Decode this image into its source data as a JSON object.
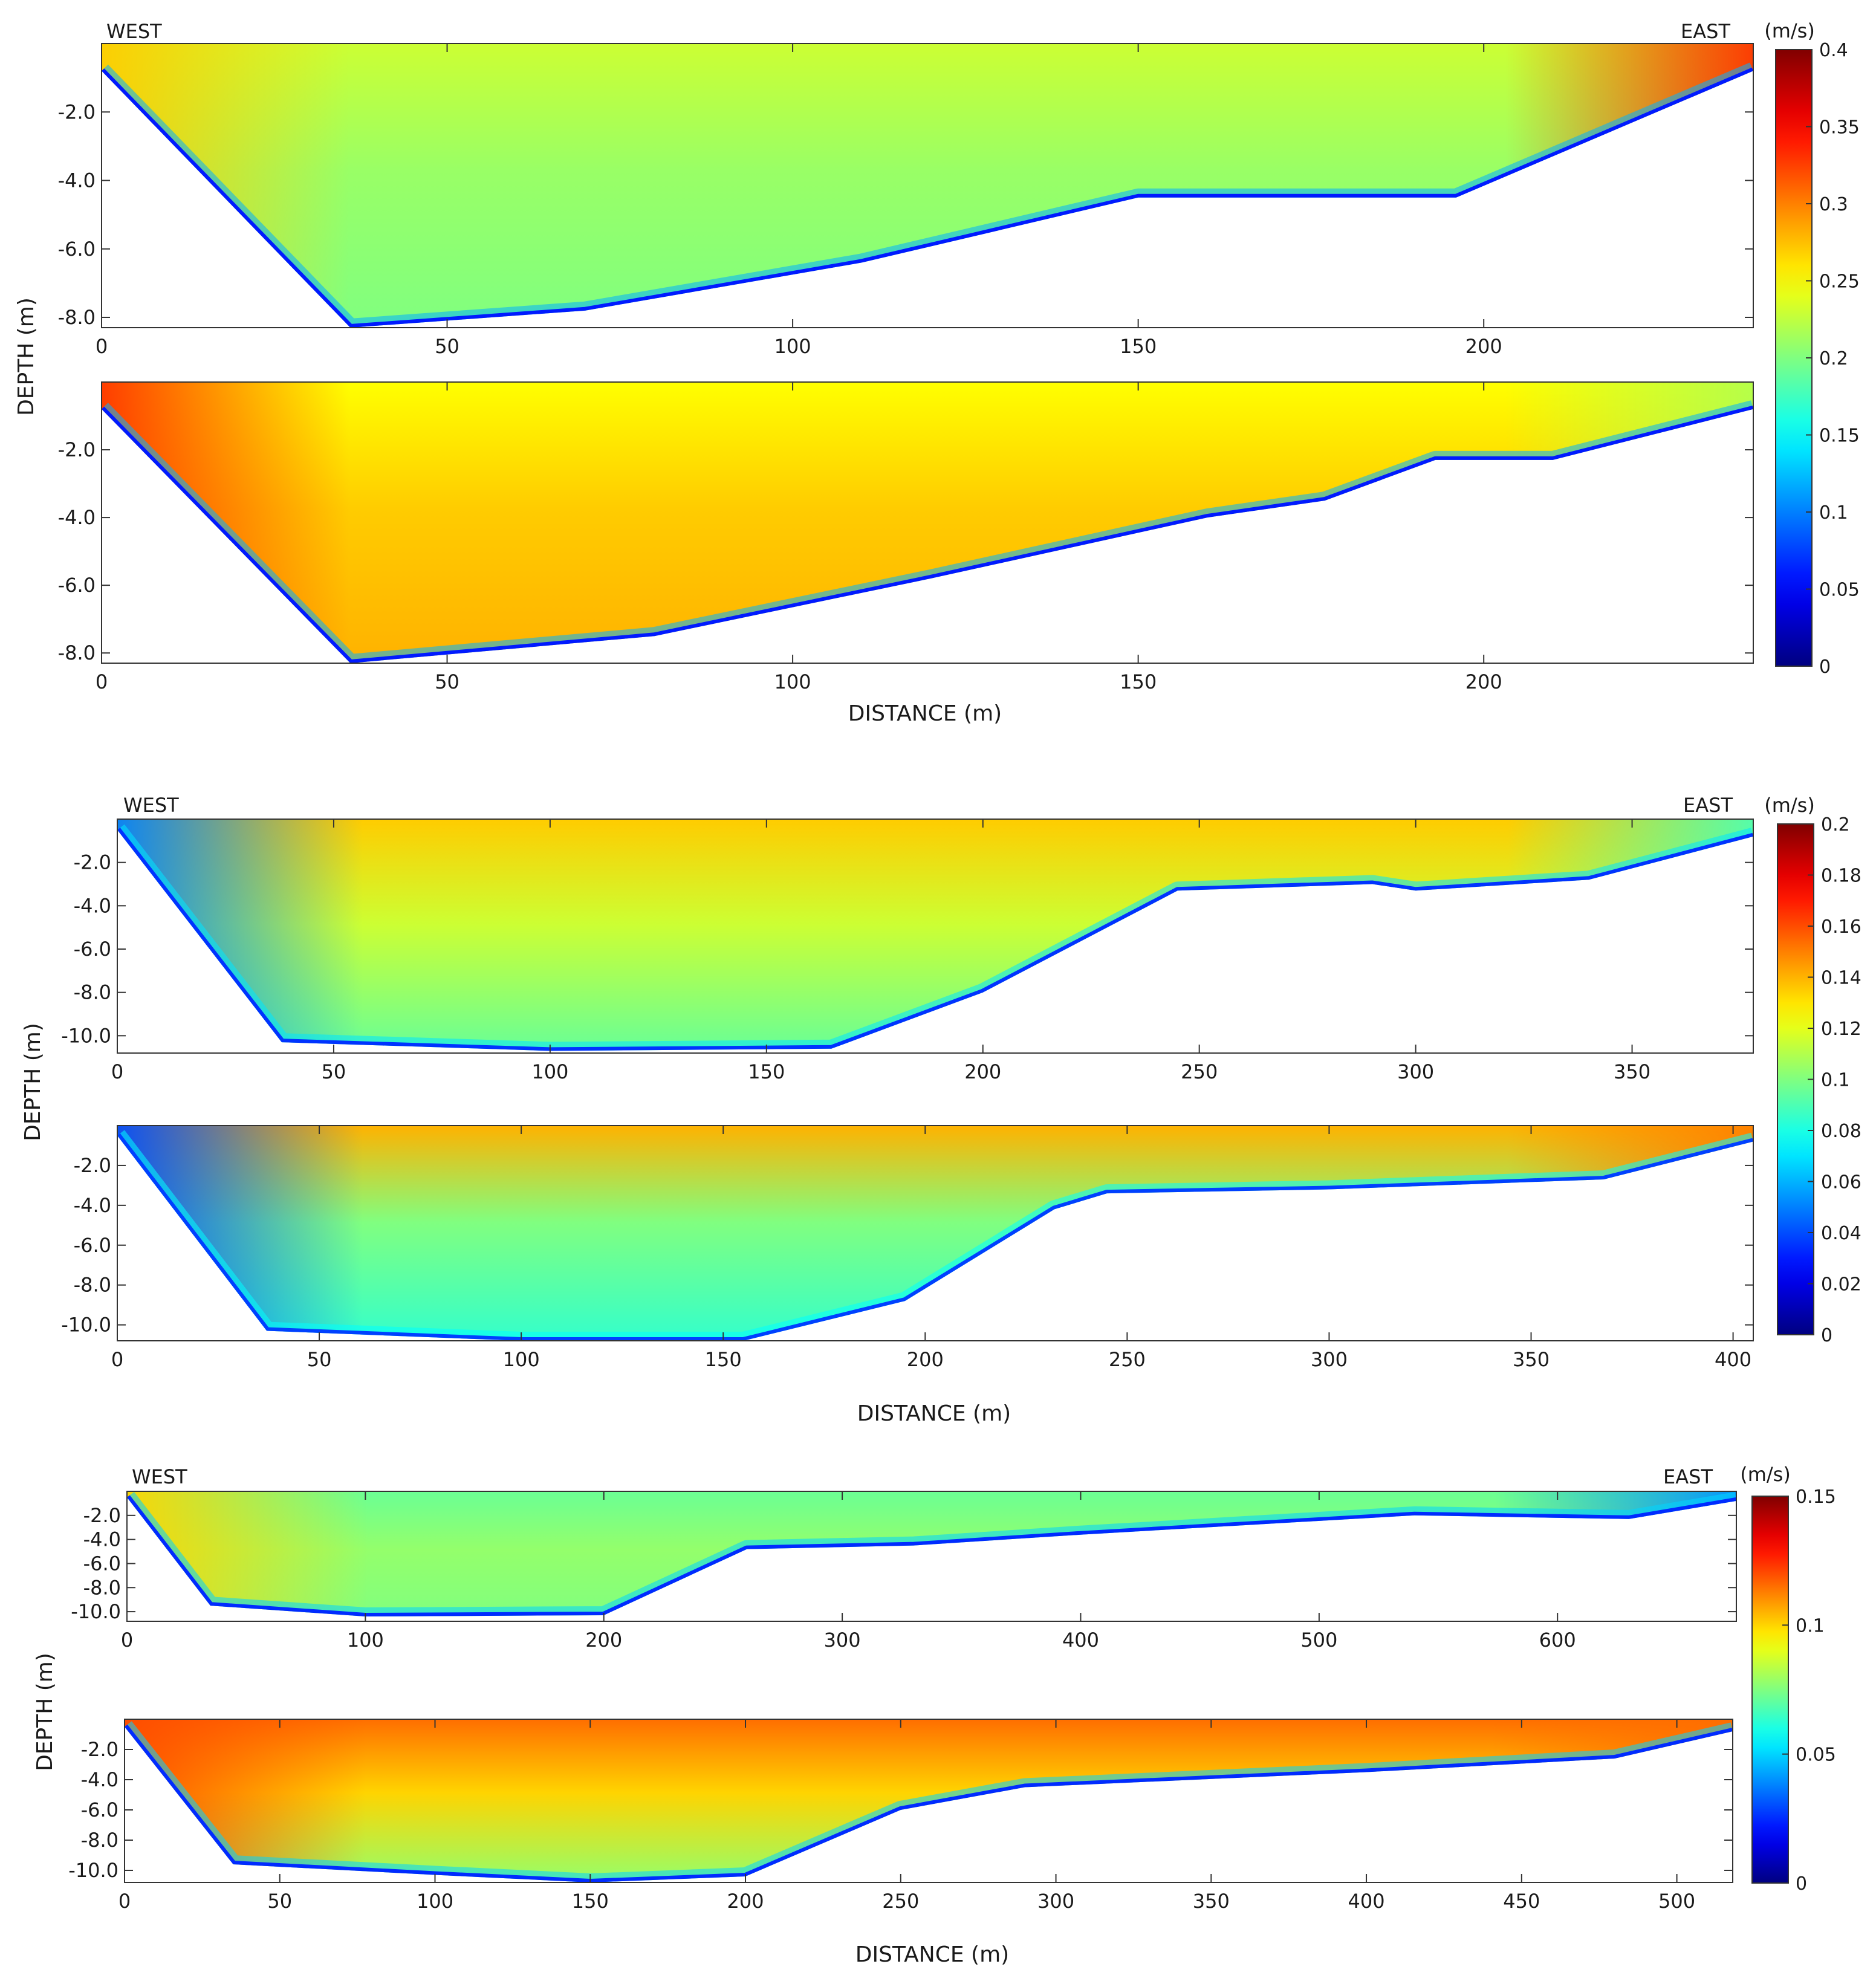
{
  "common": {
    "west_label": "WEST",
    "east_label": "EAST",
    "units_label": "(m/s)",
    "depth_axis_label": "DEPTH (m)",
    "distance_axis_label": "DISTANCE (m)"
  },
  "chart_data": [
    {
      "type": "heatmap",
      "group": 1,
      "panel": "top",
      "xlim": [
        0,
        239
      ],
      "ylim": [
        -8.3,
        0
      ],
      "x_ticks": [
        0,
        50,
        100,
        150,
        200
      ],
      "y_ticks": [
        -2.0,
        -4.0,
        -6.0,
        -8.0
      ],
      "x_tick_labels": [
        "0",
        "50",
        "100",
        "150",
        "200"
      ],
      "y_tick_labels": [
        "-2.0",
        "-4.0",
        "-6.0",
        "-8.0"
      ],
      "bed_profile": [
        [
          0,
          -0.8
        ],
        [
          36,
          -8.3
        ],
        [
          70,
          -7.8
        ],
        [
          110,
          -6.4
        ],
        [
          150,
          -4.5
        ],
        [
          196,
          -4.5
        ],
        [
          239,
          -0.8
        ]
      ],
      "colorscale": {
        "label": "(m/s)",
        "min": 0,
        "max": 0.4,
        "ticks": [
          0,
          0.05,
          0.1,
          0.15,
          0.2,
          0.25,
          0.3,
          0.35,
          0.4
        ],
        "tick_labels": [
          "0",
          "0.05",
          "0.1",
          "0.15",
          "0.2",
          "0.25",
          "0.3",
          "0.35",
          "0.4"
        ]
      },
      "velocity_field": {
        "bed_boundary_layer": 0.12,
        "west_bank": 0.27,
        "interior_mid": 0.21,
        "interior_deep": 0.2,
        "surface": 0.23,
        "east_bank": 0.33
      }
    },
    {
      "type": "heatmap",
      "group": 1,
      "panel": "bottom",
      "xlim": [
        0,
        239
      ],
      "ylim": [
        -8.3,
        0
      ],
      "x_ticks": [
        0,
        50,
        100,
        150,
        200
      ],
      "y_ticks": [
        -2.0,
        -4.0,
        -6.0,
        -8.0
      ],
      "x_tick_labels": [
        "0",
        "50",
        "100",
        "150",
        "200"
      ],
      "y_tick_labels": [
        "-2.0",
        "-4.0",
        "-6.0",
        "-8.0"
      ],
      "bed_profile": [
        [
          0,
          -0.8
        ],
        [
          36,
          -8.3
        ],
        [
          80,
          -7.5
        ],
        [
          120,
          -5.8
        ],
        [
          160,
          -4.0
        ],
        [
          177,
          -3.5
        ],
        [
          193,
          -2.3
        ],
        [
          210,
          -2.3
        ],
        [
          239,
          -0.8
        ]
      ],
      "colorscale": {
        "label": "(m/s)",
        "min": 0,
        "max": 0.4,
        "ticks": [
          0,
          0.05,
          0.1,
          0.15,
          0.2,
          0.25,
          0.3,
          0.35,
          0.4
        ],
        "tick_labels": [
          "0",
          "0.05",
          "0.1",
          "0.15",
          "0.2",
          "0.25",
          "0.3",
          "0.35",
          "0.4"
        ]
      },
      "velocity_field": {
        "bed_boundary_layer": 0.12,
        "west_bank": 0.33,
        "interior_mid": 0.27,
        "interior_deep": 0.28,
        "surface": 0.25,
        "east_bank": 0.22
      }
    },
    {
      "type": "heatmap",
      "group": 2,
      "panel": "top",
      "xlim": [
        0,
        378
      ],
      "ylim": [
        -10.8,
        0
      ],
      "x_ticks": [
        0,
        50,
        100,
        150,
        200,
        250,
        300,
        350
      ],
      "y_ticks": [
        -2.0,
        -4.0,
        -6.0,
        -8.0,
        -10.0
      ],
      "x_tick_labels": [
        "0",
        "50",
        "100",
        "150",
        "200",
        "250",
        "300",
        "350"
      ],
      "y_tick_labels": [
        "-2.0",
        "-4.0",
        "-6.0",
        "-8.0",
        "-10.0"
      ],
      "bed_profile": [
        [
          0,
          -0.5
        ],
        [
          38,
          -10.3
        ],
        [
          100,
          -10.7
        ],
        [
          165,
          -10.6
        ],
        [
          200,
          -8.0
        ],
        [
          245,
          -3.3
        ],
        [
          290,
          -3.0
        ],
        [
          300,
          -3.3
        ],
        [
          340,
          -2.8
        ],
        [
          378,
          -0.8
        ]
      ],
      "colorscale": {
        "label": "(m/s)",
        "min": 0,
        "max": 0.2,
        "ticks": [
          0,
          0.02,
          0.04,
          0.06,
          0.08,
          0.1,
          0.12,
          0.14,
          0.16,
          0.18,
          0.2
        ],
        "tick_labels": [
          "0",
          "0.02",
          "0.04",
          "0.06",
          "0.08",
          "0.1",
          "0.12",
          "0.14",
          "0.16",
          "0.18",
          "0.2"
        ]
      },
      "velocity_field": {
        "bed_boundary_layer": 0.07,
        "west_bank": 0.05,
        "interior_mid": 0.115,
        "interior_deep": 0.095,
        "surface": 0.135,
        "east_bank": 0.09
      }
    },
    {
      "type": "heatmap",
      "group": 2,
      "panel": "bottom",
      "xlim": [
        0,
        405
      ],
      "ylim": [
        -10.8,
        0
      ],
      "x_ticks": [
        0,
        50,
        100,
        150,
        200,
        250,
        300,
        350,
        400
      ],
      "y_ticks": [
        -2.0,
        -4.0,
        -6.0,
        -8.0,
        -10.0
      ],
      "x_tick_labels": [
        "0",
        "50",
        "100",
        "150",
        "200",
        "250",
        "300",
        "350",
        "400"
      ],
      "y_tick_labels": [
        "-2.0",
        "-4.0",
        "-6.0",
        "-8.0",
        "-10.0"
      ],
      "bed_profile": [
        [
          0,
          -0.5
        ],
        [
          37,
          -10.3
        ],
        [
          100,
          -10.8
        ],
        [
          155,
          -10.8
        ],
        [
          195,
          -8.8
        ],
        [
          232,
          -4.2
        ],
        [
          245,
          -3.4
        ],
        [
          300,
          -3.2
        ],
        [
          368,
          -2.7
        ],
        [
          405,
          -0.8
        ]
      ],
      "colorscale": {
        "label": "(m/s)",
        "min": 0,
        "max": 0.2,
        "ticks": [
          0,
          0.02,
          0.04,
          0.06,
          0.08,
          0.1,
          0.12,
          0.14,
          0.16,
          0.18,
          0.2
        ],
        "tick_labels": [
          "0",
          "0.02",
          "0.04",
          "0.06",
          "0.08",
          "0.1",
          "0.12",
          "0.14",
          "0.16",
          "0.18",
          "0.2"
        ]
      },
      "velocity_field": {
        "bed_boundary_layer": 0.075,
        "west_bank": 0.04,
        "interior_mid": 0.1,
        "interior_deep": 0.085,
        "surface": 0.14,
        "east_bank": 0.15
      }
    },
    {
      "type": "heatmap",
      "group": 3,
      "panel": "top",
      "xlim": [
        0,
        675
      ],
      "ylim": [
        -10.8,
        0
      ],
      "x_ticks": [
        0,
        100,
        200,
        300,
        400,
        500,
        600
      ],
      "y_ticks": [
        -2.0,
        -4.0,
        -6.0,
        -8.0,
        -10.0
      ],
      "x_tick_labels": [
        "0",
        "100",
        "200",
        "300",
        "400",
        "500",
        "600"
      ],
      "y_tick_labels": [
        "-2.0",
        "-4.0",
        "-6.0",
        "-8.0",
        "-10.0"
      ],
      "bed_profile": [
        [
          0,
          -0.5
        ],
        [
          35,
          -9.5
        ],
        [
          100,
          -10.4
        ],
        [
          200,
          -10.3
        ],
        [
          260,
          -4.8
        ],
        [
          330,
          -4.5
        ],
        [
          400,
          -3.6
        ],
        [
          540,
          -2.0
        ],
        [
          630,
          -2.3
        ],
        [
          675,
          -0.8
        ]
      ],
      "colorscale": {
        "label": "(m/s)",
        "min": 0,
        "max": 0.15,
        "ticks": [
          0,
          0.05,
          0.1,
          0.15
        ],
        "tick_labels": [
          "0",
          "0.05",
          "0.1",
          "0.15"
        ]
      },
      "velocity_field": {
        "bed_boundary_layer": 0.05,
        "west_bank": 0.1,
        "interior_mid": 0.078,
        "interior_deep": 0.075,
        "surface": 0.072,
        "east_bank": 0.04
      }
    },
    {
      "type": "heatmap",
      "group": 3,
      "panel": "bottom",
      "xlim": [
        0,
        518
      ],
      "ylim": [
        -10.8,
        0
      ],
      "x_ticks": [
        0,
        50,
        100,
        150,
        200,
        250,
        300,
        350,
        400,
        450,
        500
      ],
      "y_ticks": [
        -2.0,
        -4.0,
        -6.0,
        -8.0,
        -10.0
      ],
      "x_tick_labels": [
        "0",
        "50",
        "100",
        "150",
        "200",
        "250",
        "300",
        "350",
        "400",
        "450",
        "500"
      ],
      "y_tick_labels": [
        "-2.0",
        "-4.0",
        "-6.0",
        "-8.0",
        "-10.0"
      ],
      "bed_profile": [
        [
          0,
          -0.5
        ],
        [
          35,
          -9.6
        ],
        [
          100,
          -10.3
        ],
        [
          150,
          -10.8
        ],
        [
          200,
          -10.4
        ],
        [
          250,
          -6.0
        ],
        [
          290,
          -4.5
        ],
        [
          400,
          -3.5
        ],
        [
          480,
          -2.6
        ],
        [
          518,
          -0.8
        ]
      ],
      "colorscale": {
        "label": "(m/s)",
        "min": 0,
        "max": 0.15,
        "ticks": [
          0,
          0.05,
          0.1,
          0.15
        ],
        "tick_labels": [
          "0",
          "0.05",
          "0.1",
          "0.15"
        ]
      },
      "velocity_field": {
        "bed_boundary_layer": 0.05,
        "west_bank": 0.12,
        "interior_mid": 0.1,
        "interior_deep": 0.078,
        "surface": 0.115,
        "east_bank": 0.115
      }
    }
  ]
}
